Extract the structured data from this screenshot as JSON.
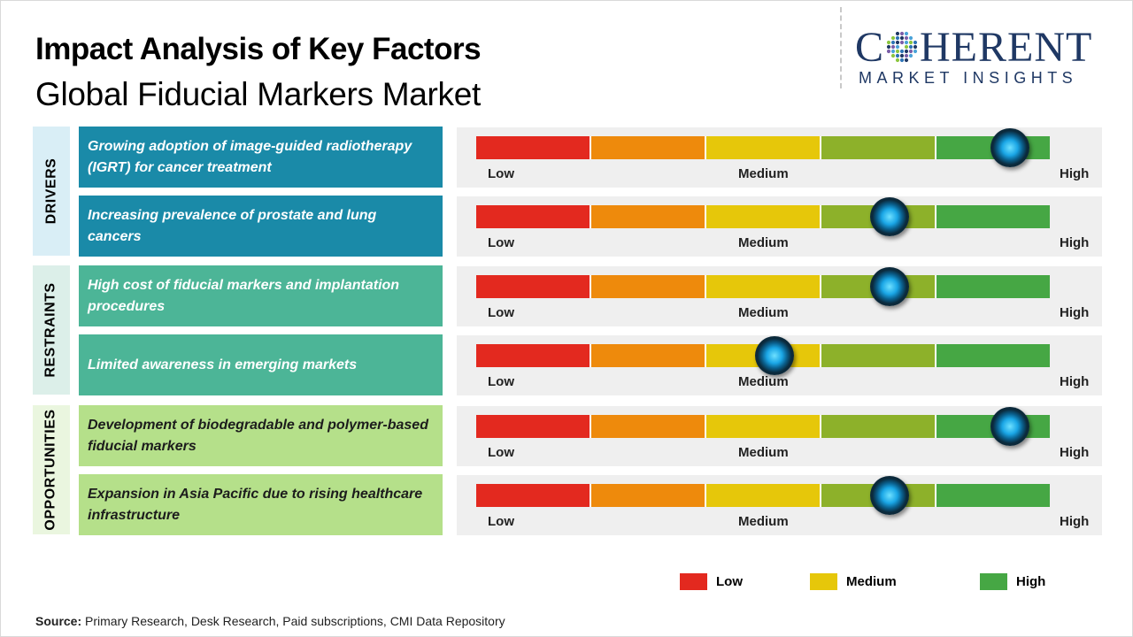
{
  "title": "Impact Analysis of Key Factors",
  "subtitle": "Global Fiducial Markers Market",
  "logo": {
    "brand": "COHERENT",
    "brand_left": "C",
    "brand_right": "HERENT",
    "tagline": "MARKET INSIGHTS"
  },
  "colors": {
    "drivers_factor": "#1a8aa8",
    "drivers_cat": "#d9eef6",
    "restraints_factor": "#4cb597",
    "restraints_cat": "#dcefe9",
    "opportunities_factor": "#b5e08a",
    "opportunities_cat": "#eaf6df",
    "segments": [
      "#e3291f",
      "#ee8a0c",
      "#e6c70a",
      "#8db12a",
      "#46a744"
    ]
  },
  "chart_data": {
    "type": "gauge",
    "scale": [
      "Low",
      "Medium",
      "High"
    ],
    "scale_min": 0,
    "scale_max": 100,
    "categories": [
      {
        "name": "DRIVERS",
        "factors": [
          {
            "text": "Growing adoption of image-guided radiotherapy (IGRT) for cancer treatment",
            "impact": 93
          },
          {
            "text": "Increasing prevalence of prostate and lung cancers",
            "impact": 72
          }
        ]
      },
      {
        "name": "RESTRAINTS",
        "factors": [
          {
            "text": "High cost of fiducial markers and implantation procedures",
            "impact": 72
          },
          {
            "text": "Limited awareness in emerging markets",
            "impact": 52
          }
        ]
      },
      {
        "name": "OPPORTUNITIES",
        "factors": [
          {
            "text": "Development of biodegradable and polymer-based fiducial markers",
            "impact": 93
          },
          {
            "text": "Expansion in Asia Pacific due to rising healthcare infrastructure",
            "impact": 72
          }
        ]
      }
    ],
    "legend": [
      {
        "label": "Low",
        "color": "#e3291f"
      },
      {
        "label": "Medium",
        "color": "#e6c70a"
      },
      {
        "label": "High",
        "color": "#46a744"
      }
    ]
  },
  "source": {
    "label": "Source:",
    "text": "Primary Research, Desk Research, Paid subscriptions, CMI Data Repository"
  }
}
